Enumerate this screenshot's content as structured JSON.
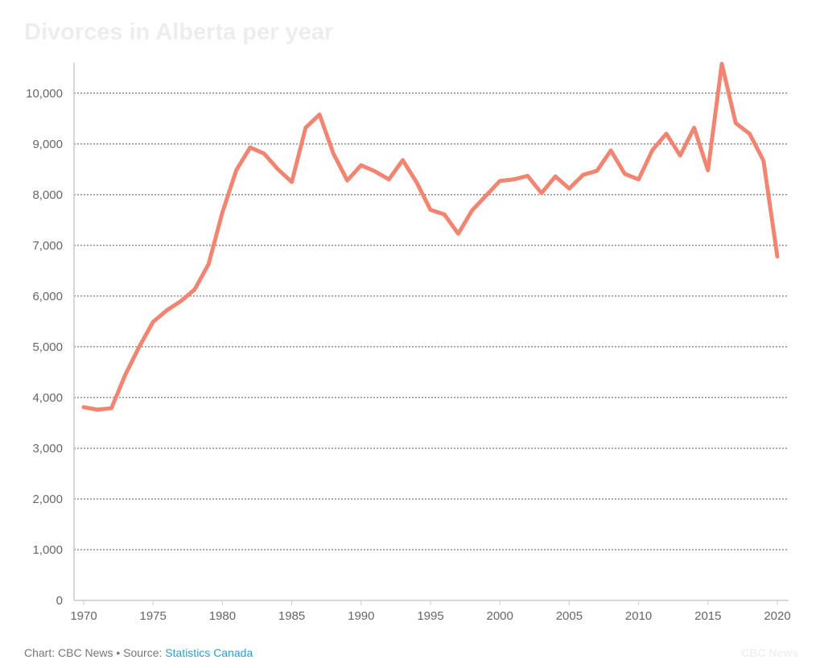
{
  "chart_data": {
    "type": "line",
    "title": "Divorces in Alberta per year",
    "xlabel": "",
    "ylabel": "",
    "xlim": [
      1970,
      2020
    ],
    "ylim": [
      0,
      10600
    ],
    "y_ticks": [
      0,
      1000,
      2000,
      3000,
      4000,
      5000,
      6000,
      7000,
      8000,
      9000,
      10000
    ],
    "y_tick_labels": [
      "0",
      "1,000",
      "2,000",
      "3,000",
      "4,000",
      "5,000",
      "6,000",
      "7,000",
      "8,000",
      "9,000",
      "10,000"
    ],
    "x_ticks": [
      1970,
      1975,
      1980,
      1985,
      1990,
      1995,
      2000,
      2005,
      2010,
      2015,
      2020
    ],
    "x_tick_labels": [
      "1970",
      "1975",
      "1980",
      "1985",
      "1990",
      "1995",
      "2000",
      "2005",
      "2010",
      "2015",
      "2020"
    ],
    "grid": "horizontal dotted",
    "series": [
      {
        "color": "#f28572",
        "x": [
          1970,
          1971,
          1972,
          1973,
          1974,
          1975,
          1976,
          1977,
          1978,
          1979,
          1980,
          1981,
          1982,
          1983,
          1984,
          1985,
          1986,
          1987,
          1988,
          1989,
          1990,
          1991,
          1992,
          1993,
          1994,
          1995,
          1996,
          1997,
          1998,
          1999,
          2000,
          2001,
          2002,
          2003,
          2004,
          2005,
          2006,
          2007,
          2008,
          2009,
          2010,
          2011,
          2012,
          2013,
          2014,
          2015,
          2016,
          2017,
          2018,
          2019,
          2020
        ],
        "values": [
          3810,
          3760,
          3790,
          4450,
          5000,
          5490,
          5720,
          5900,
          6130,
          6630,
          7650,
          8480,
          8930,
          8810,
          8500,
          8250,
          9320,
          9580,
          8810,
          8280,
          8580,
          8460,
          8300,
          8680,
          8240,
          7700,
          7610,
          7230,
          7690,
          7980,
          8270,
          8300,
          8370,
          8030,
          8360,
          8120,
          8390,
          8470,
          8870,
          8410,
          8300,
          8880,
          9200,
          8770,
          9320,
          8480,
          10580,
          9410,
          9200,
          8670,
          6780
        ]
      }
    ]
  },
  "footer": {
    "prefix": "Chart: CBC News • Source: ",
    "source_link": "Statistics Canada"
  },
  "watermark": "CBC News"
}
